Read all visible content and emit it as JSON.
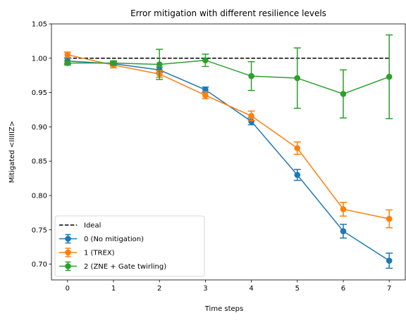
{
  "chart_data": {
    "type": "line",
    "title": "Error mitigation with different resilience levels",
    "xlabel": "Time steps",
    "ylabel": "Mitigated <IIIIIZ>",
    "xlim": [
      -0.35,
      7.35
    ],
    "ylim": [
      0.677,
      1.05
    ],
    "xticks": [
      0,
      1,
      2,
      3,
      4,
      5,
      6,
      7
    ],
    "yticks": [
      0.7,
      0.75,
      0.8,
      0.85,
      0.9,
      0.95,
      1.0,
      1.05
    ],
    "ytick_labels": [
      "0.70",
      "0.75",
      "0.80",
      "0.85",
      "0.90",
      "0.95",
      "1.00",
      "1.05"
    ],
    "grid": false,
    "legend_position": "lower-left",
    "ideal": {
      "name": "Ideal",
      "value": 1.0,
      "color": "#000000",
      "style": "dashed"
    },
    "x": [
      0,
      1,
      2,
      3,
      4,
      5,
      6,
      7
    ],
    "series": [
      {
        "name": "0 (No mitigation)",
        "color": "#1f77b4",
        "values": [
          0.996,
          0.992,
          0.983,
          0.954,
          0.908,
          0.83,
          0.748,
          0.705
        ],
        "errors": [
          0.004,
          0.003,
          0.004,
          0.004,
          0.005,
          0.008,
          0.01,
          0.011
        ]
      },
      {
        "name": "1 (TREX)",
        "color": "#ff7f0e",
        "values": [
          1.005,
          0.99,
          0.977,
          0.946,
          0.916,
          0.869,
          0.78,
          0.766
        ],
        "errors": [
          0.004,
          0.004,
          0.005,
          0.005,
          0.007,
          0.009,
          0.01,
          0.013
        ]
      },
      {
        "name": "2 (ZNE + Gate twirling)",
        "color": "#2ca02c",
        "values": [
          0.993,
          0.993,
          0.991,
          0.997,
          0.974,
          0.971,
          0.948,
          0.973
        ],
        "errors": [
          0.003,
          0.003,
          0.022,
          0.009,
          0.021,
          0.044,
          0.035,
          0.061
        ]
      }
    ]
  }
}
